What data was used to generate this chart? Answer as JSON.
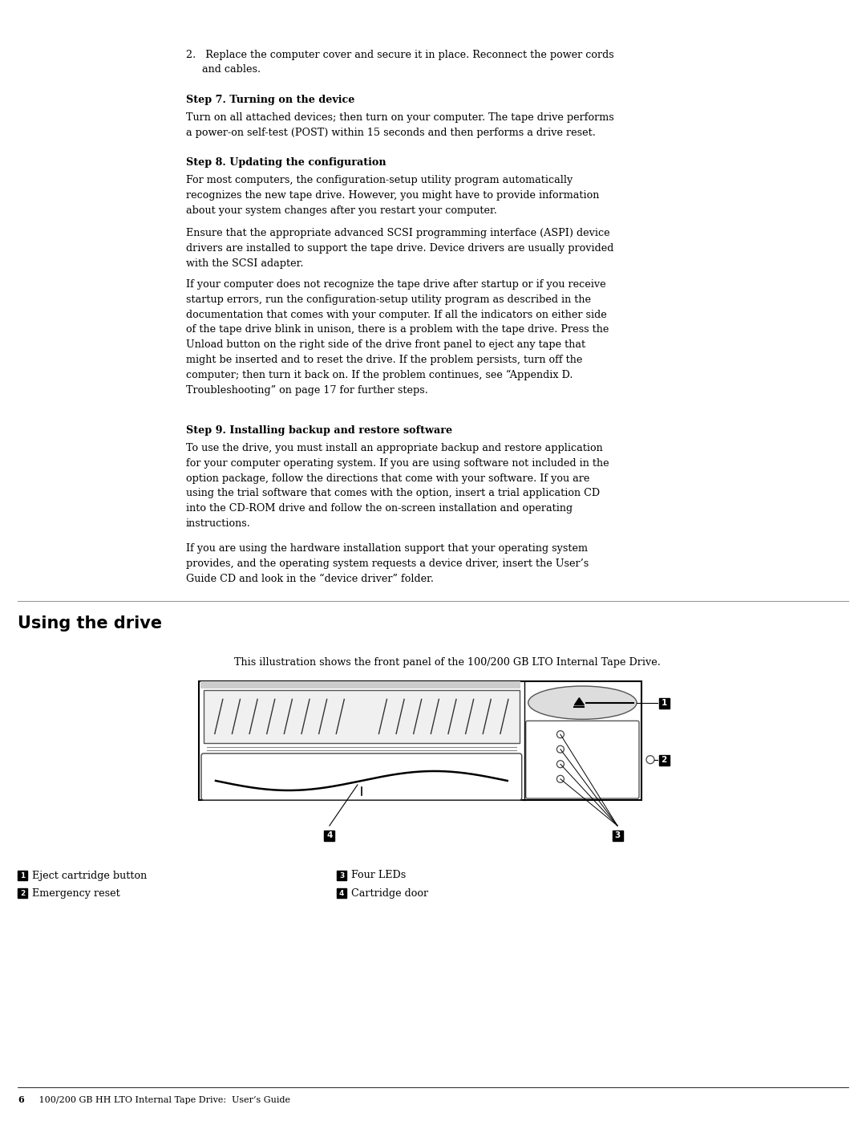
{
  "background_color": "#ffffff",
  "body_font_size": 9.2,
  "bold_font_size": 9.2,
  "using_heading_font_size": 15,
  "footer_font_size": 8.0,
  "step2_text_line1": "2.   Replace the computer cover and secure it in place. Reconnect the power cords",
  "step2_text_line2": "      and cables.",
  "step7_heading": "Step 7. Turning on the device",
  "step7_body": "Turn on all attached devices; then turn on your computer. The tape drive performs\na power-on self-test (POST) within 15 seconds and then performs a drive reset.",
  "step8_heading": "Step 8. Updating the configuration",
  "step8_para1": "For most computers, the configuration-setup utility program automatically\nrecognizes the new tape drive. However, you might have to provide information\nabout your system changes after you restart your computer.",
  "step8_para2": "Ensure that the appropriate advanced SCSI programming interface (ASPI) device\ndrivers are installed to support the tape drive. Device drivers are usually provided\nwith the SCSI adapter.",
  "step8_para3": "If your computer does not recognize the tape drive after startup or if you receive\nstartup errors, run the configuration-setup utility program as described in the\ndocumentation that comes with your computer. If all the indicators on either side\nof the tape drive blink in unison, there is a problem with the tape drive. Press the\nUnload button on the right side of the drive front panel to eject any tape that\nmight be inserted and to reset the drive. If the problem persists, turn off the\ncomputer; then turn it back on. If the problem continues, see “Appendix D.\nTroubleshooting” on page 17 for further steps.",
  "step9_heading": "Step 9. Installing backup and restore software",
  "step9_para1": "To use the drive, you must install an appropriate backup and restore application\nfor your computer operating system. If you are using software not included in the\noption package, follow the directions that come with your software. If you are\nusing the trial software that comes with the option, insert a trial application CD\ninto the CD-ROM drive and follow the on-screen installation and operating\ninstructions.",
  "step9_para2": "If you are using the hardware installation support that your operating system\nprovides, and the operating system requests a device driver, insert the User’s\nGuide CD and look in the “device driver” folder.",
  "section_heading": "Using the drive",
  "caption_text": "This illustration shows the front panel of the 100/200 GB LTO Internal Tape Drive.",
  "legend_items": [
    {
      "num": "1",
      "text": "Eject cartridge button"
    },
    {
      "num": "2",
      "text": "Emergency reset"
    },
    {
      "num": "3",
      "text": "Four LEDs"
    },
    {
      "num": "4",
      "text": "Cartridge door"
    }
  ],
  "footer_bold": "6",
  "footer_text": "   100/200 GB HH LTO Internal Tape Drive:  User’s Guide"
}
